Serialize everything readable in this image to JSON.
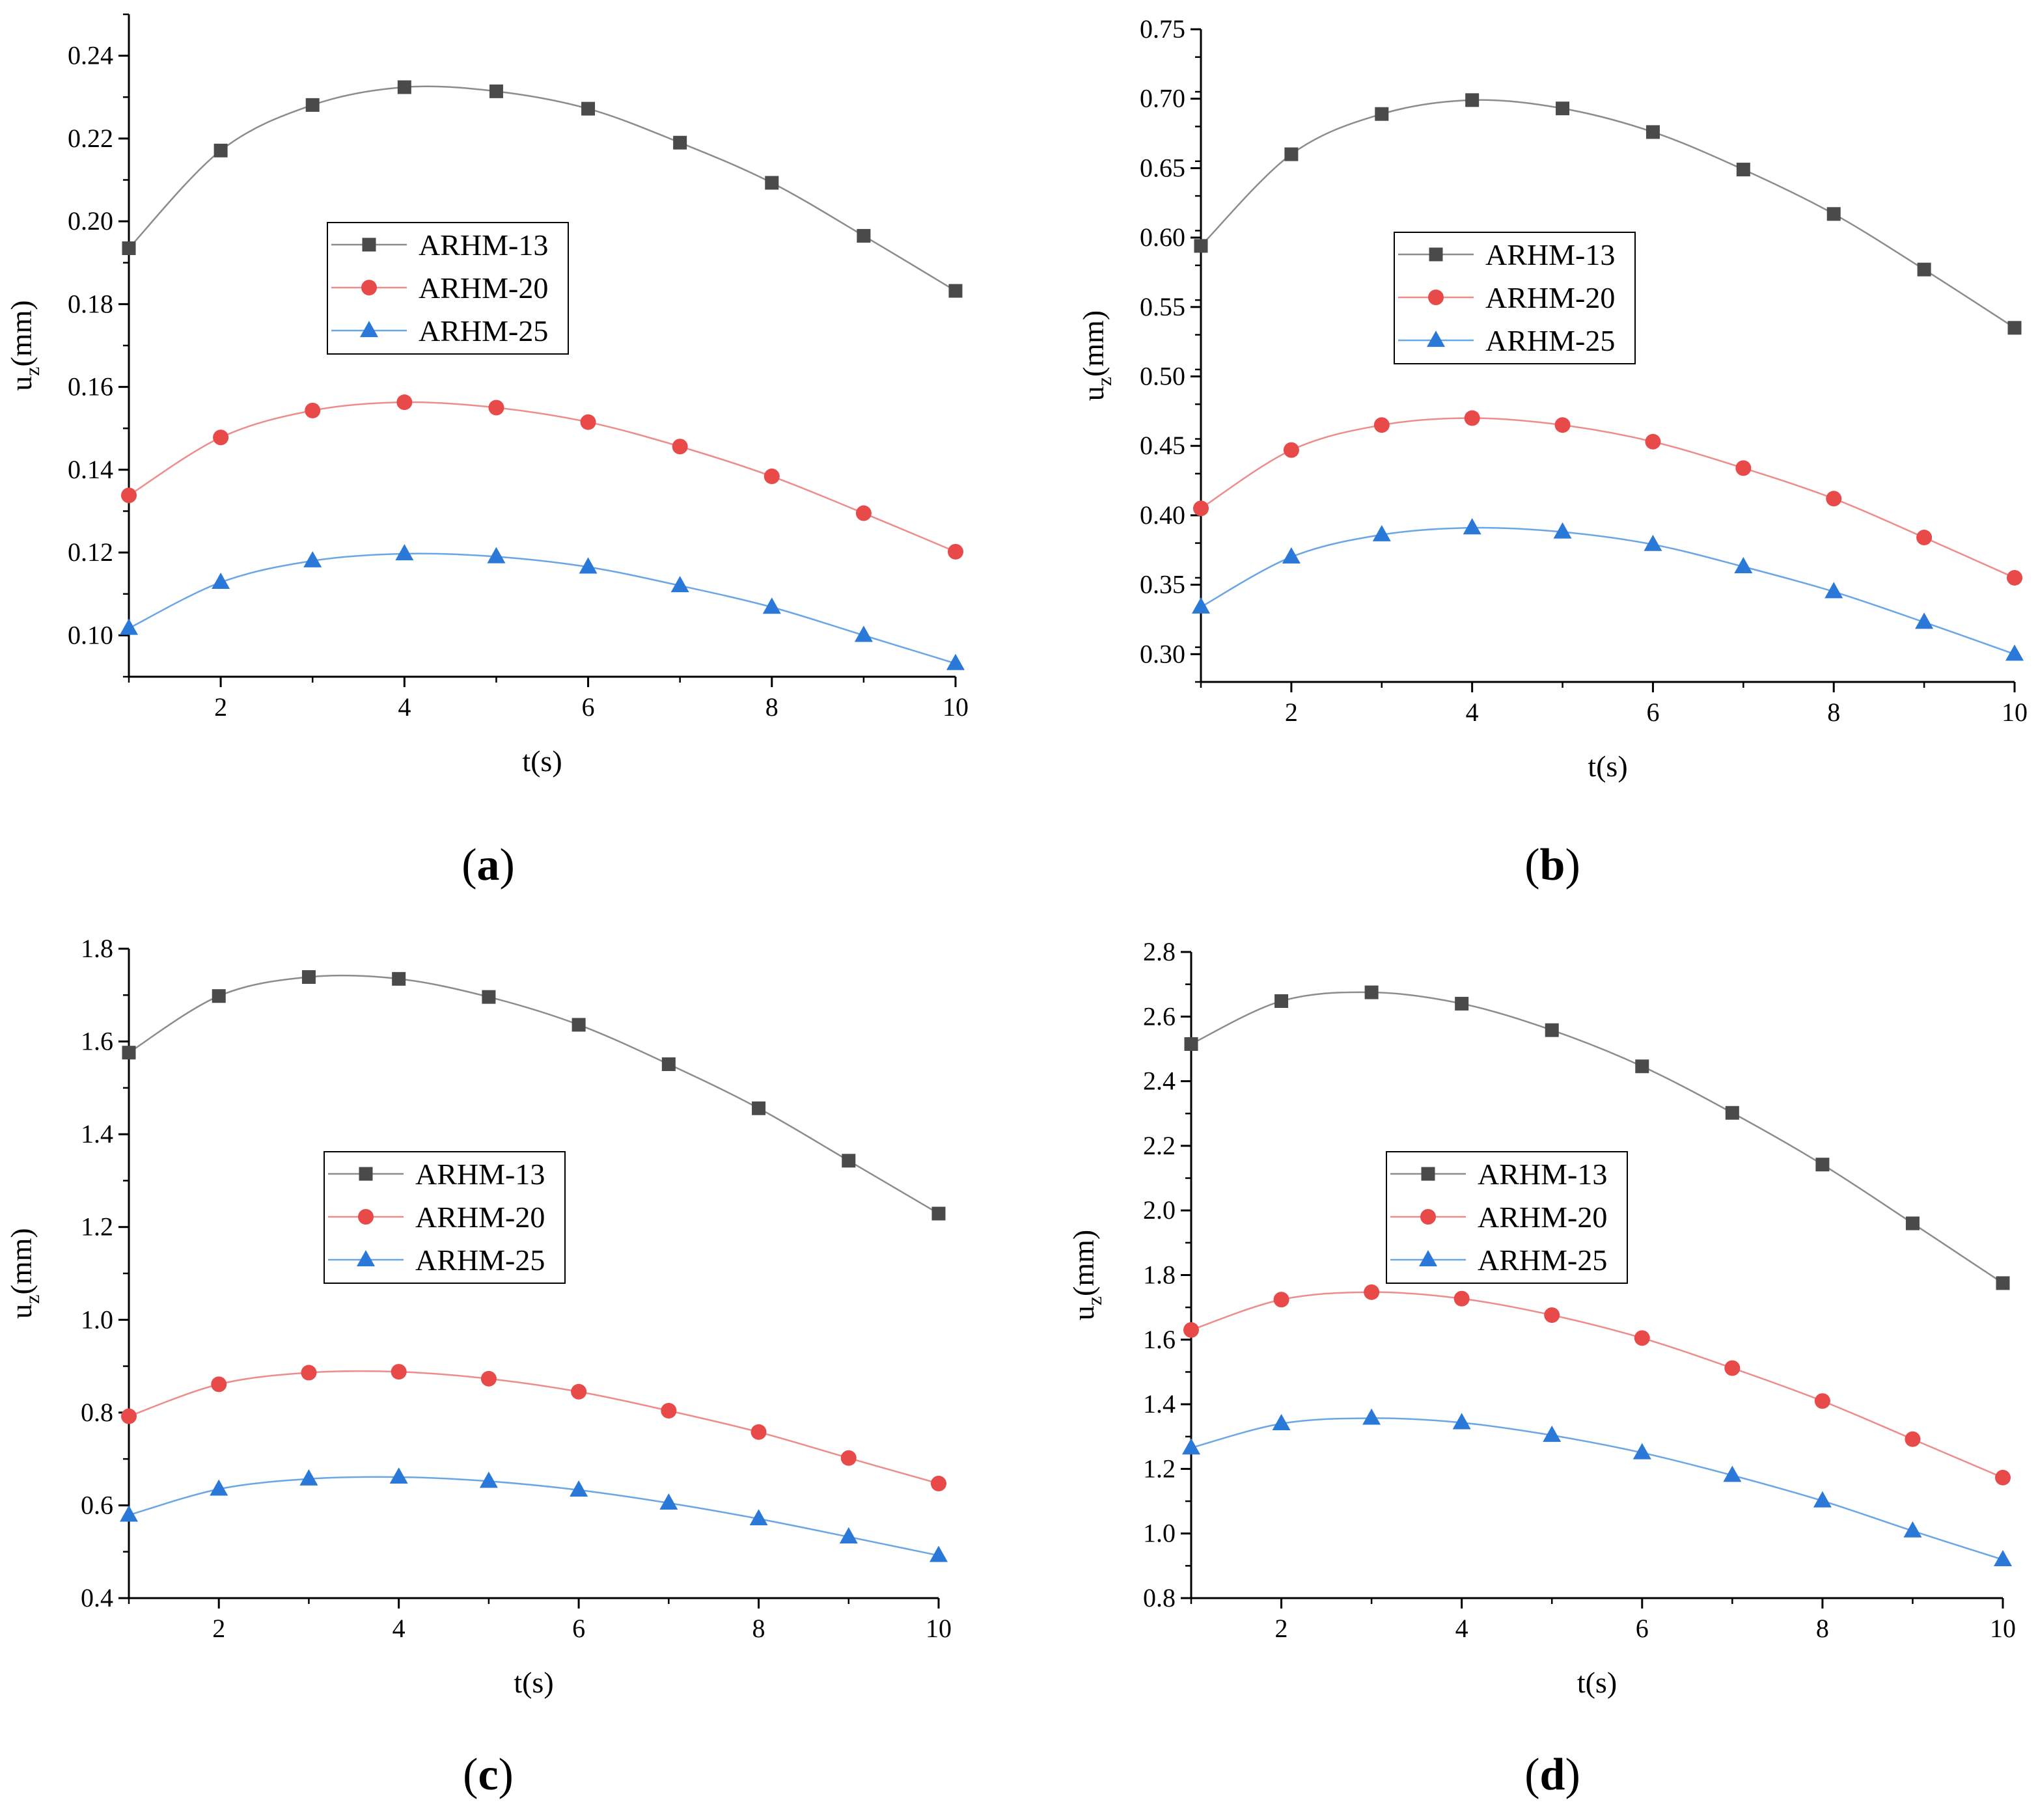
{
  "colors": {
    "ARHM-13": "#4a4a4a",
    "ARHM-20": "#e84a4a",
    "ARHM-25": "#2a78d8",
    "line_13": "#8c8c8c",
    "line_20": "#ee8c8c",
    "line_25": "#6aa6e6"
  },
  "chart_data": [
    {
      "type": "line",
      "label": "(a)",
      "label_letter": "a",
      "xlabel": "t(s)",
      "ylabel_main": "u",
      "ylabel_sub": "z",
      "ylabel_unit": "(mm)",
      "xlim": [
        1,
        10
      ],
      "ylim": [
        0.09,
        0.25
      ],
      "xticks": [
        2,
        4,
        6,
        8,
        10
      ],
      "yticks": [
        0.1,
        0.12,
        0.14,
        0.16,
        0.18,
        0.2,
        0.22,
        0.24
      ],
      "ytick_labels": [
        "0.10",
        "0.12",
        "0.14",
        "0.16",
        "0.18",
        "0.20",
        "0.22",
        "0.24"
      ],
      "x": [
        1,
        2,
        3,
        4,
        5,
        6,
        7,
        8,
        9,
        10
      ],
      "series": [
        {
          "name": "ARHM-13",
          "marker": "square",
          "values": [
            0.1935,
            0.2171,
            0.2281,
            0.2324,
            0.2314,
            0.2272,
            0.219,
            0.2093,
            0.1965,
            0.1832
          ]
        },
        {
          "name": "ARHM-20",
          "marker": "circle",
          "values": [
            0.1338,
            0.1478,
            0.1543,
            0.1563,
            0.155,
            0.1515,
            0.1456,
            0.1384,
            0.1295,
            0.1202
          ]
        },
        {
          "name": "ARHM-25",
          "marker": "triangle",
          "values": [
            0.1017,
            0.1128,
            0.118,
            0.1197,
            0.119,
            0.1165,
            0.112,
            0.1068,
            0.1,
            0.0932
          ]
        }
      ]
    },
    {
      "type": "line",
      "label": "(b)",
      "label_letter": "b",
      "xlabel": "t(s)",
      "ylabel_main": "u",
      "ylabel_sub": "z",
      "ylabel_unit": "(mm)",
      "xlim": [
        1,
        10
      ],
      "ylim": [
        0.28,
        0.75
      ],
      "xticks": [
        2,
        4,
        6,
        8,
        10
      ],
      "yticks": [
        0.3,
        0.35,
        0.4,
        0.45,
        0.5,
        0.55,
        0.6,
        0.65,
        0.7,
        0.75
      ],
      "ytick_labels": [
        "0.30",
        "0.35",
        "0.40",
        "0.45",
        "0.50",
        "0.55",
        "0.60",
        "0.65",
        "0.70",
        "0.75"
      ],
      "x": [
        1,
        2,
        3,
        4,
        5,
        6,
        7,
        8,
        9,
        10
      ],
      "series": [
        {
          "name": "ARHM-13",
          "marker": "square",
          "values": [
            0.594,
            0.66,
            0.689,
            0.699,
            0.693,
            0.676,
            0.649,
            0.617,
            0.577,
            0.535
          ]
        },
        {
          "name": "ARHM-20",
          "marker": "circle",
          "values": [
            0.405,
            0.447,
            0.465,
            0.47,
            0.465,
            0.453,
            0.434,
            0.412,
            0.384,
            0.355
          ]
        },
        {
          "name": "ARHM-25",
          "marker": "triangle",
          "values": [
            0.334,
            0.37,
            0.386,
            0.391,
            0.388,
            0.379,
            0.363,
            0.345,
            0.323,
            0.3
          ]
        }
      ]
    },
    {
      "type": "line",
      "label": "(c)",
      "label_letter": "c",
      "xlabel": "t(s)",
      "ylabel_main": "u",
      "ylabel_sub": "z",
      "ylabel_unit": "(mm)",
      "xlim": [
        1,
        10
      ],
      "ylim": [
        0.4,
        1.8
      ],
      "xticks": [
        2,
        4,
        6,
        8,
        10
      ],
      "yticks": [
        0.4,
        0.6,
        0.8,
        1.0,
        1.2,
        1.4,
        1.6,
        1.8
      ],
      "ytick_labels": [
        "0.4",
        "0.6",
        "0.8",
        "1.0",
        "1.2",
        "1.4",
        "1.6",
        "1.8"
      ],
      "x": [
        1,
        2,
        3,
        4,
        5,
        6,
        7,
        8,
        9,
        10
      ],
      "series": [
        {
          "name": "ARHM-13",
          "marker": "square",
          "values": [
            1.576,
            1.698,
            1.739,
            1.735,
            1.696,
            1.636,
            1.551,
            1.456,
            1.343,
            1.229
          ]
        },
        {
          "name": "ARHM-20",
          "marker": "circle",
          "values": [
            0.792,
            0.861,
            0.886,
            0.888,
            0.873,
            0.845,
            0.804,
            0.758,
            0.702,
            0.647
          ]
        },
        {
          "name": "ARHM-25",
          "marker": "triangle",
          "values": [
            0.579,
            0.635,
            0.657,
            0.661,
            0.652,
            0.633,
            0.605,
            0.571,
            0.532,
            0.492
          ]
        }
      ]
    },
    {
      "type": "line",
      "label": "(d)",
      "label_letter": "d",
      "xlabel": "t(s)",
      "ylabel_main": "u",
      "ylabel_sub": "z",
      "ylabel_unit": "(mm)",
      "xlim": [
        1,
        10
      ],
      "ylim": [
        0.8,
        2.8
      ],
      "xticks": [
        2,
        4,
        6,
        8,
        10
      ],
      "yticks": [
        0.8,
        1.0,
        1.2,
        1.4,
        1.6,
        1.8,
        2.0,
        2.2,
        2.4,
        2.6,
        2.8
      ],
      "ytick_labels": [
        "0.8",
        "1.0",
        "1.2",
        "1.4",
        "1.6",
        "1.8",
        "2.0",
        "2.2",
        "2.4",
        "2.6",
        "2.8"
      ],
      "x": [
        1,
        2,
        3,
        4,
        5,
        6,
        7,
        8,
        9,
        10
      ],
      "series": [
        {
          "name": "ARHM-13",
          "marker": "square",
          "values": [
            2.515,
            2.648,
            2.675,
            2.64,
            2.558,
            2.446,
            2.302,
            2.142,
            1.96,
            1.775
          ]
        },
        {
          "name": "ARHM-20",
          "marker": "circle",
          "values": [
            1.63,
            1.724,
            1.747,
            1.727,
            1.676,
            1.605,
            1.512,
            1.41,
            1.292,
            1.173
          ]
        },
        {
          "name": "ARHM-25",
          "marker": "triangle",
          "values": [
            1.265,
            1.34,
            1.357,
            1.343,
            1.304,
            1.25,
            1.18,
            1.101,
            1.008,
            0.919
          ]
        }
      ]
    }
  ]
}
